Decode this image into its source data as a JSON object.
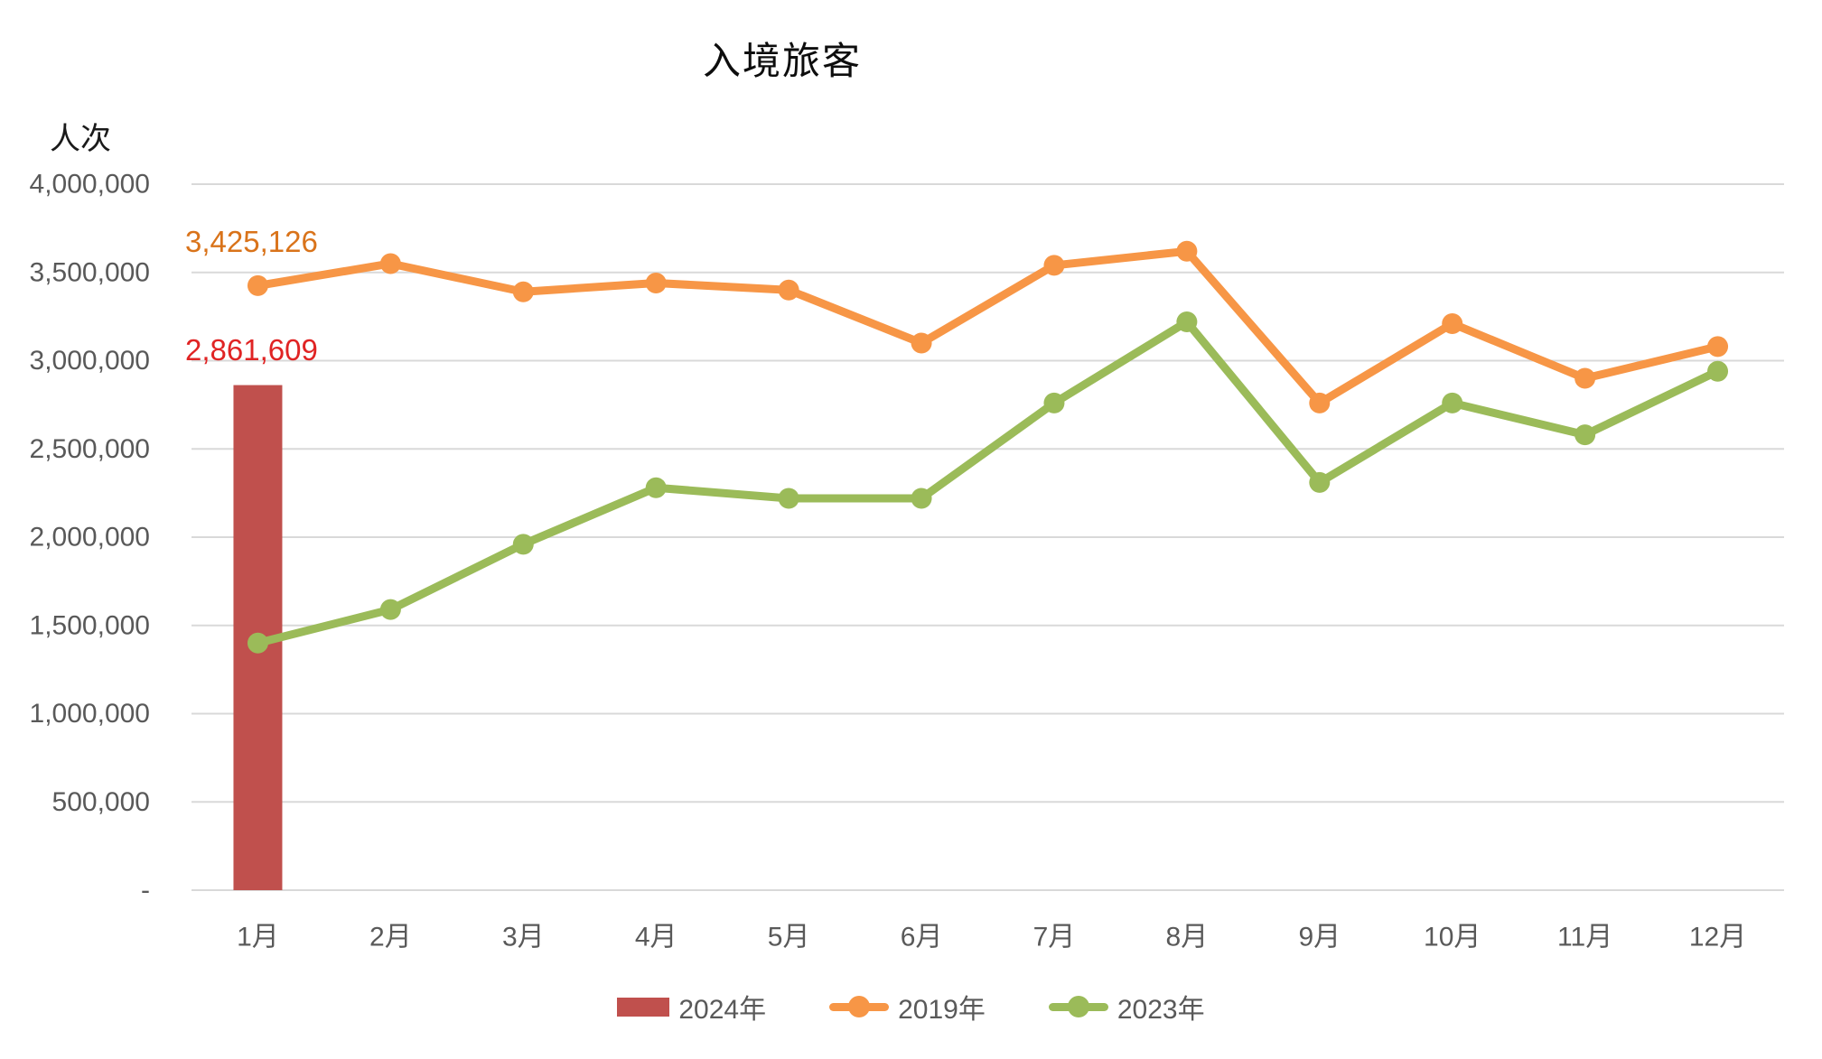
{
  "chart_data": {
    "type": "combo",
    "title": "入境旅客",
    "y_axis_unit": "人次",
    "categories": [
      "1月",
      "2月",
      "3月",
      "4月",
      "5月",
      "6月",
      "7月",
      "8月",
      "9月",
      "10月",
      "11月",
      "12月"
    ],
    "y_ticks": [
      "4,000,000",
      "3,500,000",
      "3,000,000",
      "2,500,000",
      "2,000,000",
      "1,500,000",
      "1,000,000",
      "500,000",
      "-"
    ],
    "y_axis": {
      "min": 0,
      "max": 4000000,
      "tick_interval": 500000,
      "grid": true
    },
    "legend_position": "bottom",
    "series": [
      {
        "name": "2024年",
        "type": "bar",
        "color": "#c0504d",
        "values": [
          2861609,
          null,
          null,
          null,
          null,
          null,
          null,
          null,
          null,
          null,
          null,
          null
        ]
      },
      {
        "name": "2019年",
        "type": "line",
        "color": "#f79646",
        "values": [
          3425126,
          3550000,
          3390000,
          3440000,
          3400000,
          3100000,
          3540000,
          3620000,
          2760000,
          3210000,
          2900000,
          3080000
        ]
      },
      {
        "name": "2023年",
        "type": "line",
        "color": "#9bbb59",
        "values": [
          1400000,
          1590000,
          1960000,
          2280000,
          2220000,
          2220000,
          2760000,
          3220000,
          2310000,
          2760000,
          2580000,
          2940000
        ]
      }
    ],
    "annotations": [
      {
        "text": "3,425,126",
        "series": "2019年",
        "category": "1月",
        "color": "#d9731a"
      },
      {
        "text": "2,861,609",
        "series": "2024年",
        "category": "1月",
        "color": "#e02424"
      }
    ]
  },
  "colors": {
    "grid": "#d9d9d9",
    "axis_text": "#595959",
    "accent_bar": "#c0504d",
    "accent_line_2019": "#f79646",
    "accent_line_2023": "#9bbb59"
  }
}
